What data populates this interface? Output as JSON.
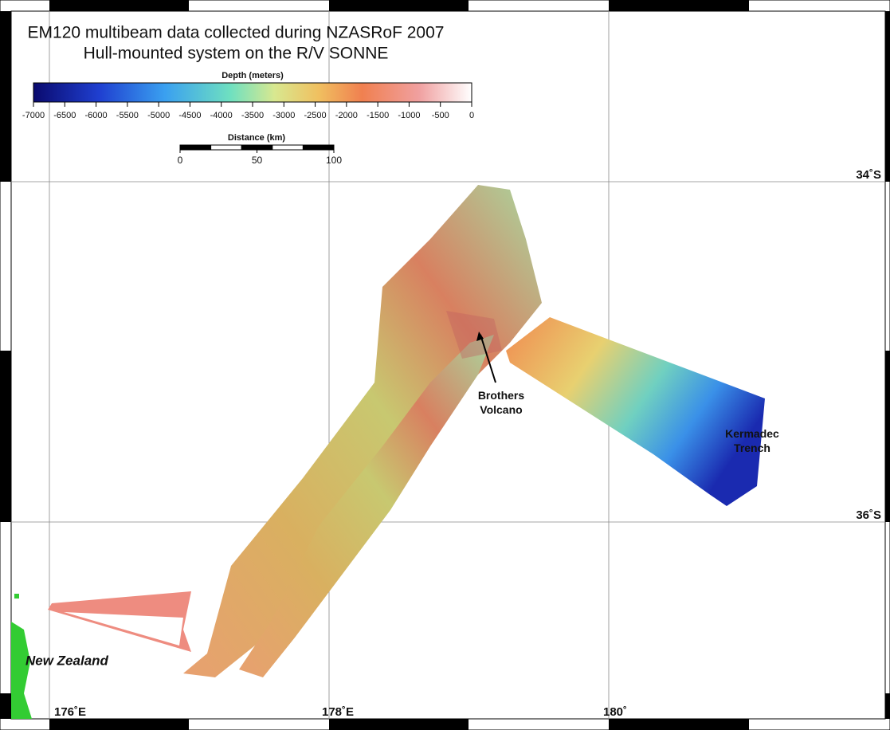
{
  "title": [
    "EM120 multibeam data collected during NZASRoF 2007",
    "Hull-mounted system on the R/V SONNE"
  ],
  "depth_legend": {
    "title": "Depth (meters)",
    "range": [
      -7000,
      0
    ],
    "ticks": [
      -7000,
      -6500,
      -6000,
      -5500,
      -5000,
      -4500,
      -4000,
      -3500,
      -3000,
      -2500,
      -2000,
      -1500,
      -1000,
      -500,
      0
    ]
  },
  "distance_legend": {
    "title": "Distance (km)",
    "range": [
      0,
      100
    ],
    "ticks": [
      0,
      50,
      100
    ]
  },
  "latitude_labels": [
    "34˚S",
    "36˚S"
  ],
  "longitude_labels": [
    "176˚E",
    "178˚E",
    "180˚"
  ],
  "place_labels": [
    "Brothers\nVolcano",
    "Kermadec\nTrench",
    "New Zealand"
  ]
}
